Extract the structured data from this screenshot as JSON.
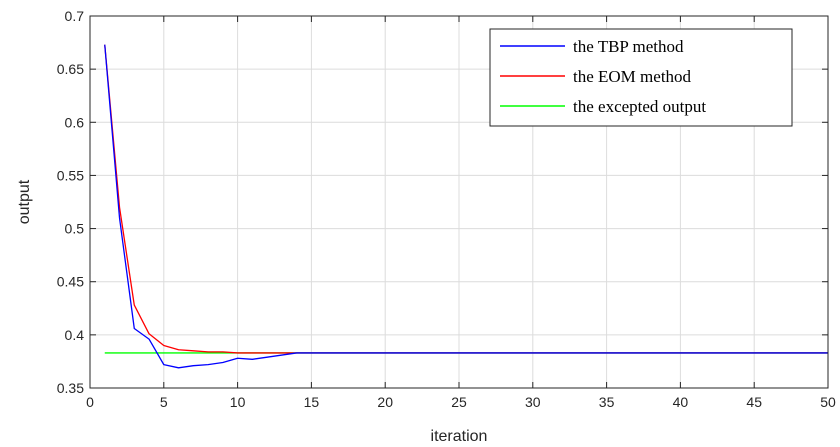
{
  "chart_data": {
    "type": "line",
    "title": "",
    "xlabel": "iteration",
    "ylabel": "output",
    "xlim": [
      0,
      50
    ],
    "ylim": [
      0.35,
      0.7
    ],
    "xticks": [
      0,
      5,
      10,
      15,
      20,
      25,
      30,
      35,
      40,
      45,
      50
    ],
    "yticks": [
      0.35,
      0.4,
      0.45,
      0.5,
      0.55,
      0.6,
      0.65,
      0.7
    ],
    "xtick_labels": [
      "0",
      "5",
      "10",
      "15",
      "20",
      "25",
      "30",
      "35",
      "40",
      "45",
      "50"
    ],
    "ytick_labels": [
      "0.35",
      "0.4",
      "0.45",
      "0.5",
      "0.55",
      "0.6",
      "0.65",
      "0.7"
    ],
    "grid": true,
    "legend_position": "top-right",
    "series": [
      {
        "name": "the TBP method",
        "color": "#0000ff",
        "x": [
          1,
          2,
          3,
          4,
          5,
          6,
          7,
          8,
          9,
          10,
          11,
          12,
          13,
          14,
          15,
          16,
          17,
          18,
          19,
          20,
          25,
          30,
          35,
          40,
          45,
          50
        ],
        "y": [
          0.673,
          0.51,
          0.406,
          0.396,
          0.372,
          0.369,
          0.371,
          0.372,
          0.374,
          0.378,
          0.377,
          0.379,
          0.381,
          0.383,
          0.383,
          0.383,
          0.383,
          0.383,
          0.383,
          0.383,
          0.383,
          0.383,
          0.383,
          0.383,
          0.383,
          0.383
        ]
      },
      {
        "name": "the EOM method",
        "color": "#ff0000",
        "x": [
          1,
          2,
          3,
          4,
          5,
          6,
          7,
          8,
          9,
          10,
          11,
          12,
          13,
          14,
          15,
          16,
          17,
          18,
          19,
          20,
          25,
          30,
          35,
          40,
          45,
          50
        ],
        "y": [
          0.673,
          0.52,
          0.428,
          0.401,
          0.39,
          0.386,
          0.385,
          0.384,
          0.384,
          0.383,
          0.383,
          0.383,
          0.383,
          0.383,
          0.383,
          0.383,
          0.383,
          0.383,
          0.383,
          0.383,
          0.383,
          0.383,
          0.383,
          0.383,
          0.383,
          0.383
        ]
      },
      {
        "name": "the excepted output",
        "color": "#00ff00",
        "x": [
          1,
          50
        ],
        "y": [
          0.383,
          0.383
        ]
      }
    ]
  }
}
